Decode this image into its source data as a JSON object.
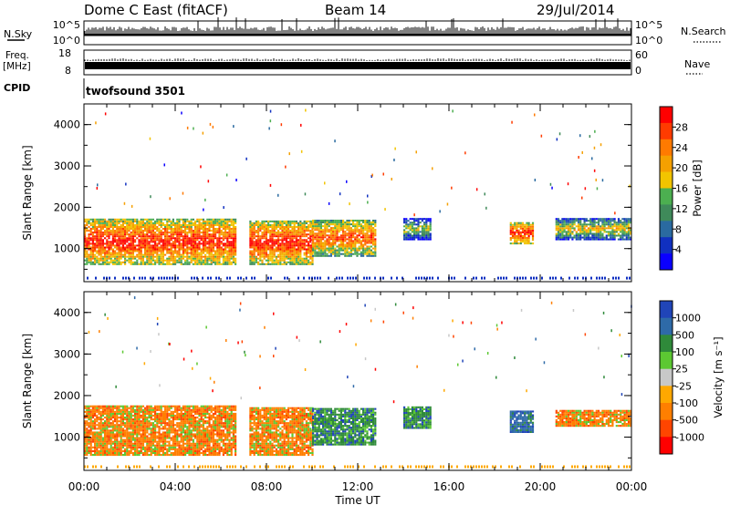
{
  "header": {
    "station": "Dome C East (fitACF)",
    "beam": "Beam 14",
    "date": "29/Jul/2014"
  },
  "strips": {
    "nsky": {
      "label": "N.Sky",
      "tick_top": "10^5",
      "tick_bottom": "10^0",
      "right_label": "N.Search",
      "right_tick_top": "10^5",
      "right_tick_bottom": "10^0"
    },
    "freq": {
      "label_line1": "Freq.",
      "label_line2": "[MHz]",
      "tick_top": "18",
      "tick_bottom": "8",
      "right_label": "Nave",
      "right_tick_top": "60",
      "right_tick_bottom": "0"
    },
    "cpid": {
      "label": "CPID",
      "text": "twofsound 3501"
    }
  },
  "colors": {
    "power": [
      "#0a00ff",
      "#1030c0",
      "#2a6aa0",
      "#3f8a5a",
      "#4caf50",
      "#f2c400",
      "#f5a000",
      "#ff7a00",
      "#ff3b00",
      "#ff0000"
    ],
    "velocity": [
      "#ff0000",
      "#ff4500",
      "#ff7f00",
      "#ffa800",
      "#c8c8c8",
      "#5cc832",
      "#2f8a3a",
      "#2e6aa8",
      "#2045b8"
    ],
    "frame": "#000000"
  },
  "chart_data": [
    {
      "type": "heatmap",
      "name": "power",
      "ylabel": "Slant Range [km]",
      "y_ticks": [
        "1000",
        "2000",
        "3000",
        "4000"
      ],
      "ylim": [
        200,
        4500
      ],
      "colorbar_title": "Power [dB]",
      "colorbar_ticks": [
        "4",
        "8",
        "12",
        "16",
        "20",
        "24",
        "28"
      ],
      "x": [
        "00:00",
        "01:00",
        "02:00",
        "03:00",
        "04:00",
        "05:00",
        "06:00",
        "07:00",
        "08:00",
        "09:00",
        "10:00",
        "11:00",
        "12:00",
        "13:00",
        "14:00",
        "15:00",
        "16:00",
        "17:00",
        "18:00",
        "19:00",
        "20:00",
        "21:00",
        "22:00",
        "23:00"
      ],
      "echo_bands": [
        {
          "start": "00:00",
          "end": "06:40",
          "range_low_km": 600,
          "range_high_km": 1700,
          "peak_db": 30
        },
        {
          "start": "07:15",
          "end": "10:00",
          "range_low_km": 600,
          "range_high_km": 1650,
          "peak_db": 30
        },
        {
          "start": "10:00",
          "end": "12:45",
          "range_low_km": 800,
          "range_high_km": 1700,
          "peak_db": 24
        },
        {
          "start": "14:00",
          "end": "15:10",
          "range_low_km": 1200,
          "range_high_km": 1700,
          "peak_db": 16
        },
        {
          "start": "18:40",
          "end": "19:40",
          "range_low_km": 1100,
          "range_high_km": 1600,
          "peak_db": 28
        },
        {
          "start": "20:40",
          "end": "24:00",
          "range_low_km": 1200,
          "range_high_km": 1700,
          "peak_db": 20
        }
      ]
    },
    {
      "type": "heatmap",
      "name": "velocity",
      "ylabel": "Slant Range [km]",
      "y_ticks": [
        "1000",
        "2000",
        "3000",
        "4000"
      ],
      "ylim": [
        200,
        4500
      ],
      "colorbar_title": "Velocity [m s⁻¹]",
      "colorbar_ticks": [
        "1000",
        "500",
        "100",
        "25",
        "-25",
        "-100",
        "-500",
        "-1000"
      ],
      "xlabel": "Time UT",
      "x_ticks": [
        "00:00",
        "04:00",
        "08:00",
        "12:00",
        "16:00",
        "20:00",
        "00:00"
      ],
      "echo_bands": [
        {
          "start": "00:00",
          "end": "06:40",
          "range_low_km": 550,
          "range_high_km": 1750,
          "dominant_velocity": "-100"
        },
        {
          "start": "07:15",
          "end": "10:00",
          "range_low_km": 550,
          "range_high_km": 1700,
          "dominant_velocity": "-100"
        },
        {
          "start": "10:00",
          "end": "12:45",
          "range_low_km": 800,
          "range_high_km": 1700,
          "dominant_velocity": "100"
        },
        {
          "start": "14:00",
          "end": "15:10",
          "range_low_km": 1200,
          "range_high_km": 1700,
          "dominant_velocity": "100"
        },
        {
          "start": "18:40",
          "end": "19:40",
          "range_low_km": 1100,
          "range_high_km": 1600,
          "dominant_velocity": "500"
        },
        {
          "start": "20:40",
          "end": "24:00",
          "range_low_km": 1250,
          "range_high_km": 1650,
          "dominant_velocity": "-100"
        }
      ]
    }
  ]
}
